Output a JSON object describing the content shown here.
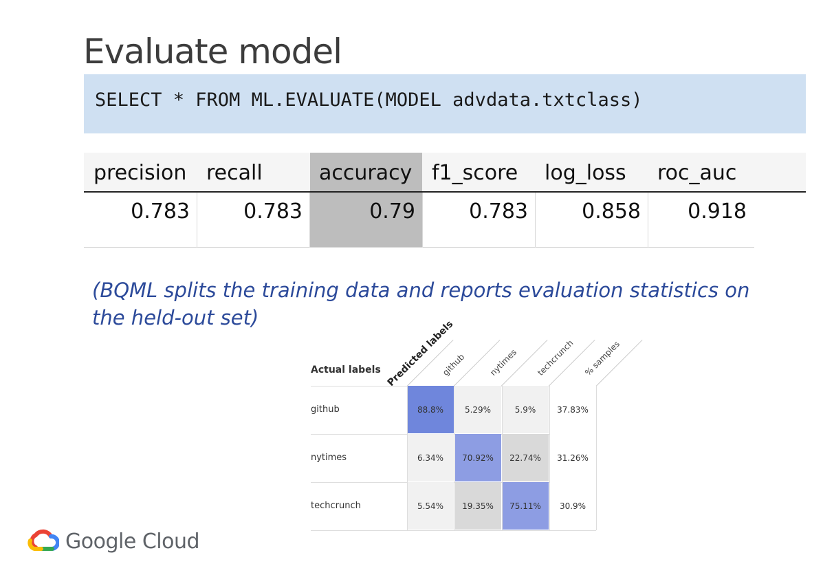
{
  "slide": {
    "title": "Evaluate model",
    "query": "SELECT * FROM ML.EVALUATE(MODEL advdata.txtclass)",
    "note": "(BQML splits the training data and reports evaluation statistics on the held-out set)"
  },
  "metrics": {
    "headers": [
      "precision",
      "recall",
      "accuracy",
      "f1_score",
      "log_loss",
      "roc_auc"
    ],
    "values": [
      "0.783",
      "0.783",
      "0.79",
      "0.783",
      "0.858",
      "0.918"
    ]
  },
  "confusion": {
    "actual_header": "Actual labels",
    "predicted_header": "Predicted labels",
    "columns": [
      "github",
      "nytimes",
      "techcrunch",
      "% samples"
    ],
    "rows": [
      {
        "label": "github",
        "cells": [
          "88.8%",
          "5.29%",
          "5.9%",
          "37.83%"
        ]
      },
      {
        "label": "nytimes",
        "cells": [
          "6.34%",
          "70.92%",
          "22.74%",
          "31.26%"
        ]
      },
      {
        "label": "techcrunch",
        "cells": [
          "5.54%",
          "19.35%",
          "75.11%",
          "30.9%"
        ]
      }
    ],
    "colors": {
      "diag_strong": "#6f86dc",
      "diag_medium": "#8d9de3",
      "light": "#f1f1f1",
      "mid": "#d9d9d9"
    }
  },
  "brand": {
    "wordmark": "Google Cloud"
  }
}
